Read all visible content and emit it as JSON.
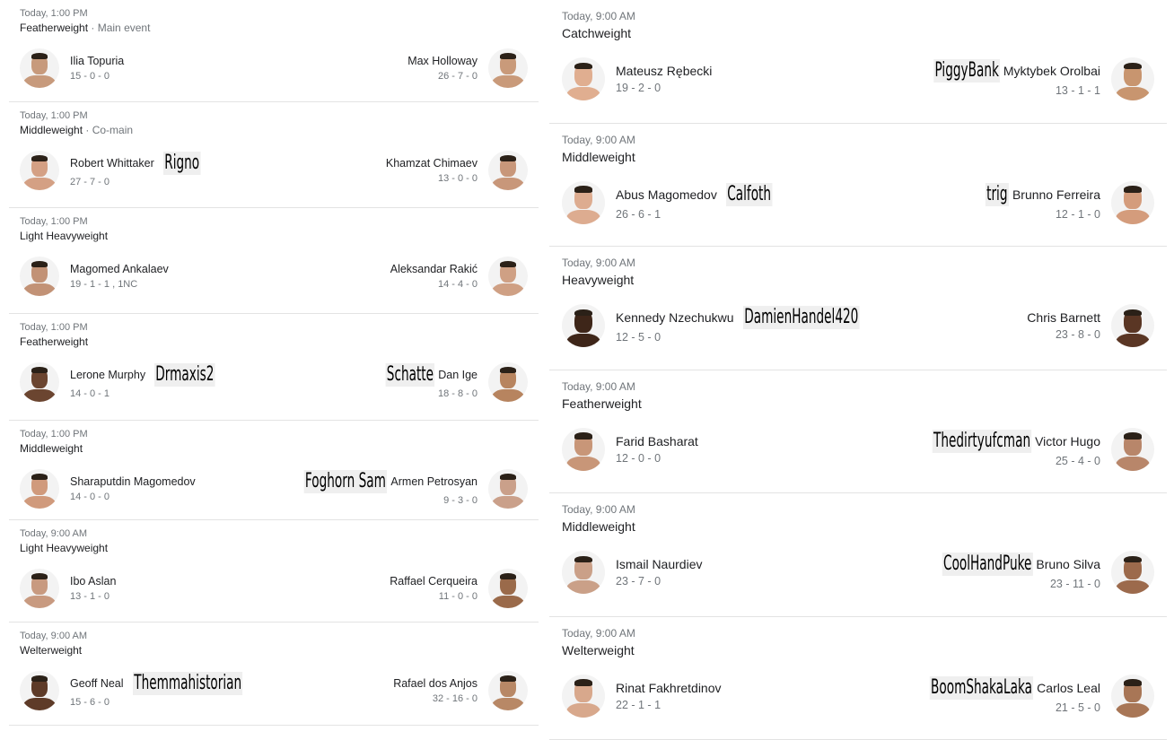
{
  "left_fights": [
    {
      "time": "Today, 1:00 PM",
      "division": "Featherweight",
      "tagline": "Main event",
      "a": {
        "name": "Ilia Topuria",
        "record": "15 - 0 - 0",
        "skin": "#c79a7c"
      },
      "b": {
        "name": "Max Holloway",
        "record": "26 - 7 - 0",
        "skin": "#c99a7a"
      },
      "tagA": "",
      "tagB": ""
    },
    {
      "time": "Today, 1:00 PM",
      "division": "Middleweight",
      "tagline": "Co-main",
      "a": {
        "name": "Robert Whittaker",
        "record": "27 - 7 - 0",
        "skin": "#d4a084"
      },
      "b": {
        "name": "Khamzat Chimaev",
        "record": "13 - 0 - 0",
        "skin": "#c8977a"
      },
      "tagA": "Rigno",
      "tagB": ""
    },
    {
      "time": "Today, 1:00 PM",
      "division": "Light Heavyweight",
      "tagline": "",
      "a": {
        "name": "Magomed Ankalaev",
        "record": "19 - 1 - 1 , 1NC",
        "skin": "#c29276"
      },
      "b": {
        "name": "Aleksandar Rakić",
        "record": "14 - 4 - 0",
        "skin": "#cfa084"
      },
      "tagA": "",
      "tagB": ""
    },
    {
      "time": "Today, 1:00 PM",
      "division": "Featherweight",
      "tagline": "",
      "a": {
        "name": "Lerone Murphy",
        "record": "14 - 0 - 1",
        "skin": "#6b4530"
      },
      "b": {
        "name": "Dan Ige",
        "record": "18 - 8 - 0",
        "skin": "#b7845f"
      },
      "tagA": "Drmaxis2",
      "tagB": "Schatte"
    },
    {
      "time": "Today, 1:00 PM",
      "division": "Middleweight",
      "tagline": "",
      "a": {
        "name": "Sharaputdin Magomedov",
        "record": "14 - 0 - 0",
        "skin": "#d09a7c"
      },
      "b": {
        "name": "Armen Petrosyan",
        "record": "9 - 3 - 0",
        "skin": "#caa08a"
      },
      "tagA": "",
      "tagB": "Foghorn Sam"
    },
    {
      "time": "Today, 9:00 AM",
      "division": "Light Heavyweight",
      "tagline": "",
      "a": {
        "name": "Ibo Aslan",
        "record": "13 - 1 - 0",
        "skin": "#c89a80"
      },
      "b": {
        "name": "Raffael Cerqueira",
        "record": "11 - 0 - 0",
        "skin": "#9a6a4a"
      },
      "tagA": "",
      "tagB": ""
    },
    {
      "time": "Today, 9:00 AM",
      "division": "Welterweight",
      "tagline": "",
      "a": {
        "name": "Geoff Neal",
        "record": "15 - 6 - 0",
        "skin": "#5e3b28"
      },
      "b": {
        "name": "Rafael dos Anjos",
        "record": "32 - 16 - 0",
        "skin": "#b88866"
      },
      "tagA": "Themmahistorian",
      "tagB": ""
    }
  ],
  "right_fights": [
    {
      "time": "Today, 9:00 AM",
      "division": "Catchweight",
      "tagline": "",
      "a": {
        "name": "Mateusz Rębecki",
        "record": "19 - 2 - 0",
        "skin": "#e0ae90"
      },
      "b": {
        "name": "Myktybek Orolbai",
        "record": "13 - 1 - 1",
        "skin": "#c8956f"
      },
      "tagA": "",
      "tagB": "PiggyBank"
    },
    {
      "time": "Today, 9:00 AM",
      "division": "Middleweight",
      "tagline": "",
      "a": {
        "name": "Abus Magomedov",
        "record": "26 - 6 - 1",
        "skin": "#ddac90"
      },
      "b": {
        "name": "Brunno Ferreira",
        "record": "12 - 1 - 0",
        "skin": "#d49c7c"
      },
      "tagA": "Calfoth",
      "tagB": "trig"
    },
    {
      "time": "Today, 9:00 AM",
      "division": "Heavyweight",
      "tagline": "",
      "a": {
        "name": "Kennedy Nzechukwu",
        "record": "12 - 5 - 0",
        "skin": "#3e2619"
      },
      "b": {
        "name": "Chris Barnett",
        "record": "23 - 8 - 0",
        "skin": "#5a3624"
      },
      "tagA": "DamienHandel420",
      "tagB": ""
    },
    {
      "time": "Today, 9:00 AM",
      "division": "Featherweight",
      "tagline": "",
      "a": {
        "name": "Farid Basharat",
        "record": "12 - 0 - 0",
        "skin": "#c89678"
      },
      "b": {
        "name": "Victor Hugo",
        "record": "25 - 4 - 0",
        "skin": "#b8866a"
      },
      "tagA": "",
      "tagB": "Thedirtyufcman"
    },
    {
      "time": "Today, 9:00 AM",
      "division": "Middleweight",
      "tagline": "",
      "a": {
        "name": "Ismail Naurdiev",
        "record": "23 - 7 - 0",
        "skin": "#caa088"
      },
      "b": {
        "name": "Bruno Silva",
        "record": "23 - 11 - 0",
        "skin": "#9c6a4c"
      },
      "tagA": "",
      "tagB": "CoolHandPuke"
    },
    {
      "time": "Today, 9:00 AM",
      "division": "Welterweight",
      "tagline": "",
      "a": {
        "name": "Rinat Fakhretdinov",
        "record": "22 - 1 - 1",
        "skin": "#d8a88c"
      },
      "b": {
        "name": "Carlos Leal",
        "record": "21 - 5 - 0",
        "skin": "#a87656"
      },
      "tagA": "",
      "tagB": "BoomShakaLaka"
    }
  ],
  "separator": " · "
}
